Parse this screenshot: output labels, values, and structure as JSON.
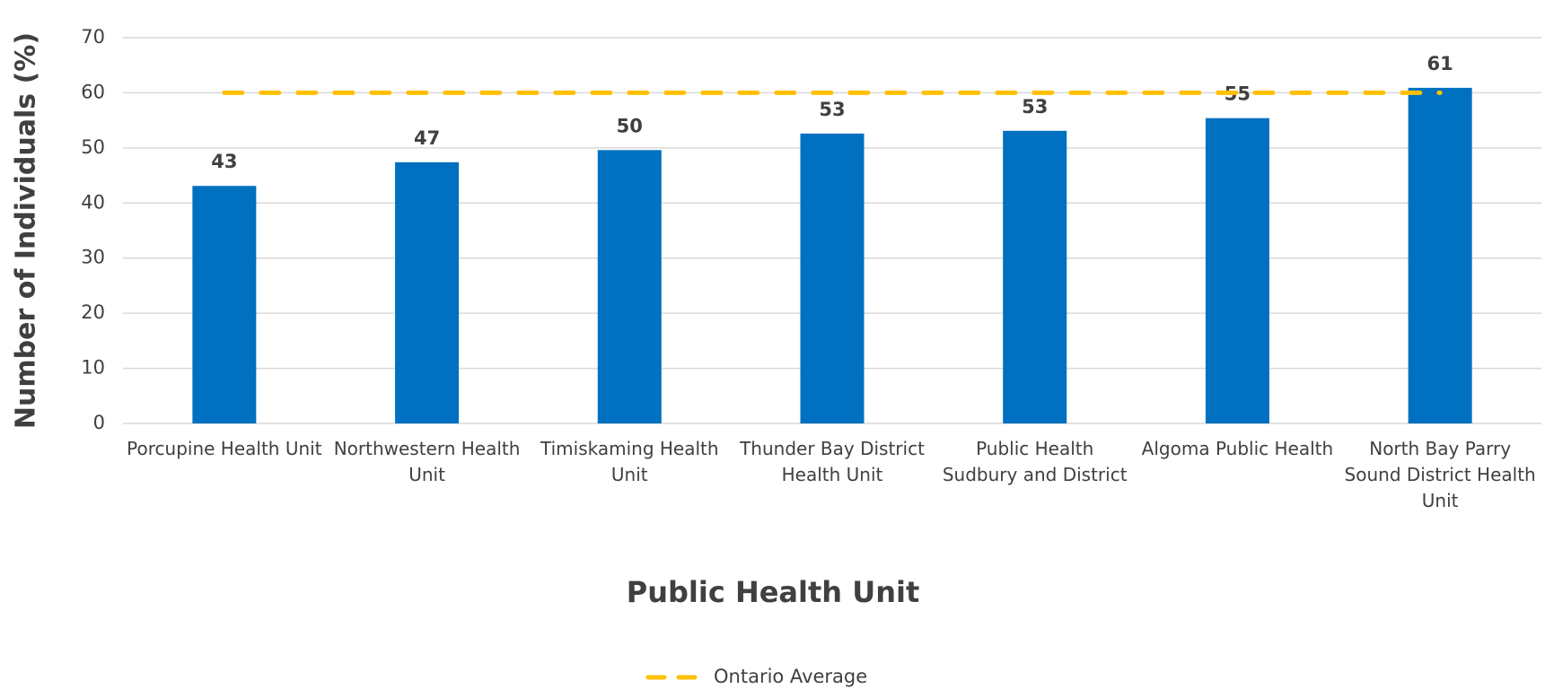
{
  "chart_data": {
    "type": "bar",
    "x_label": "Public Health Unit",
    "y_label": "Number of Individuals (%)",
    "categories": [
      "Porcupine Health Unit",
      "Northwestern Health Unit",
      "Timiskaming Health Unit",
      "Thunder Bay District Health Unit",
      "Public Health Sudbury and District",
      "Algoma Public Health",
      "North Bay Parry Sound District Health Unit"
    ],
    "values": [
      43.1,
      47.4,
      49.6,
      52.6,
      53.1,
      55.4,
      60.9
    ],
    "value_labels": [
      "43",
      "47",
      "50",
      "53",
      "53",
      "55",
      "61"
    ],
    "color": "#0070c0",
    "average": {
      "name": "Ontario Average",
      "value": 60,
      "color": "#ffc000"
    },
    "ylim": [
      0,
      70
    ],
    "yticks": [
      0,
      10,
      20,
      30,
      40,
      50,
      60,
      70
    ],
    "grid": true
  }
}
